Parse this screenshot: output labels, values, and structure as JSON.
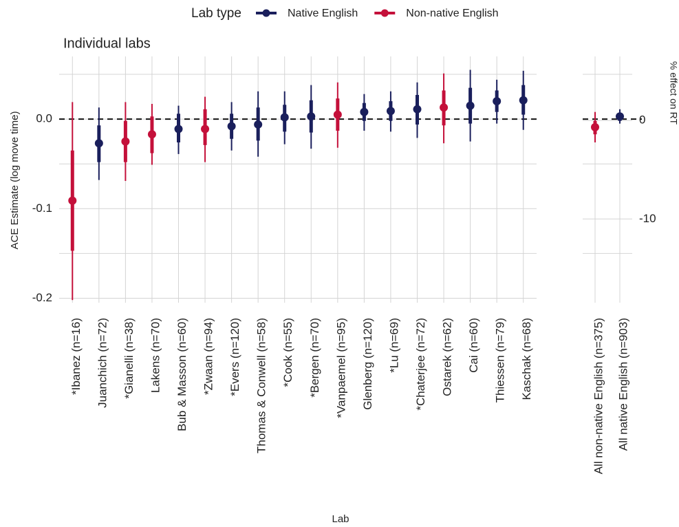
{
  "chart_data": [
    {
      "type": "pointrange",
      "title": "Individual labs",
      "x_label": "Lab",
      "y_label": "ACE Estimate (log move time)",
      "legend_title": "Lab type",
      "legend_position": "top",
      "categories": [
        "*Ibanez (n=16)",
        "Juanchich (n=72)",
        "*Gianelli (n=38)",
        "Lakens (n=70)",
        "Bub & Masson (n=60)",
        "*Zwaan (n=94)",
        "*Evers (n=120)",
        "Thomas & Conwell (n=58)",
        "*Cook (n=55)",
        "*Bergen (n=70)",
        "*Vanpaemel (n=95)",
        "Glenberg (n=120)",
        "*Lu (n=69)",
        "*Chaterjee (n=72)",
        "Ostarek (n=62)",
        "Cai (n=60)",
        "Thiessen (n=79)",
        "Kaschak (n=68)"
      ],
      "series": [
        {
          "name": "Native English",
          "color": "#1a1f5c",
          "values": [
            null,
            -0.027,
            null,
            null,
            -0.011,
            null,
            -0.008,
            -0.006,
            0.002,
            0.003,
            null,
            0.008,
            0.009,
            0.011,
            null,
            0.015,
            0.02,
            0.021
          ],
          "inner_low": [
            null,
            -0.048,
            null,
            null,
            -0.026,
            null,
            -0.022,
            -0.024,
            -0.014,
            -0.015,
            null,
            -0.002,
            -0.002,
            -0.006,
            null,
            -0.005,
            0.008,
            0.005
          ],
          "inner_high": [
            null,
            -0.007,
            null,
            null,
            0.006,
            null,
            0.006,
            0.013,
            0.016,
            0.021,
            null,
            0.018,
            0.02,
            0.027,
            null,
            0.035,
            0.032,
            0.038
          ],
          "outer_low": [
            null,
            -0.068,
            null,
            null,
            -0.039,
            null,
            -0.035,
            -0.042,
            -0.028,
            -0.033,
            null,
            -0.013,
            -0.014,
            -0.021,
            null,
            -0.025,
            -0.005,
            -0.012
          ],
          "outer_high": [
            null,
            0.013,
            null,
            null,
            0.015,
            null,
            0.019,
            0.031,
            0.031,
            0.038,
            null,
            0.028,
            0.031,
            0.041,
            null,
            0.055,
            0.044,
            0.054
          ]
        },
        {
          "name": "Non-native English",
          "color": "#c4103a",
          "values": [
            -0.091,
            null,
            -0.025,
            -0.017,
            null,
            -0.011,
            null,
            null,
            null,
            null,
            0.005,
            null,
            null,
            null,
            0.013,
            null,
            null,
            null
          ],
          "inner_low": [
            -0.147,
            null,
            -0.048,
            -0.038,
            null,
            -0.029,
            null,
            null,
            null,
            null,
            -0.013,
            null,
            null,
            null,
            -0.007,
            null,
            null,
            null
          ],
          "inner_high": [
            -0.035,
            null,
            -0.002,
            0.003,
            null,
            0.011,
            null,
            null,
            null,
            null,
            0.023,
            null,
            null,
            null,
            0.032,
            null,
            null,
            null
          ],
          "outer_low": [
            -0.202,
            null,
            -0.069,
            -0.051,
            null,
            -0.048,
            null,
            null,
            null,
            null,
            -0.032,
            null,
            null,
            null,
            -0.027,
            null,
            null,
            null
          ],
          "outer_high": [
            0.019,
            null,
            0.019,
            0.017,
            null,
            0.025,
            null,
            null,
            null,
            null,
            0.041,
            null,
            null,
            null,
            0.051,
            null,
            null,
            null
          ]
        }
      ],
      "ylim": [
        -0.205,
        0.07
      ],
      "yticks": [
        -0.2,
        -0.1,
        {
          "value": 0,
          "label": "0.0"
        }
      ],
      "minor_yticks": [
        -0.15,
        -0.05,
        0.05
      ],
      "hline": 0,
      "grid": true
    },
    {
      "type": "pointrange",
      "y2_label": "% effect on RT",
      "categories": [
        "All non-native English (n=375)",
        "All native English (n=903)"
      ],
      "series": [
        {
          "name": "Non-native English",
          "color": "#c4103a",
          "values": [
            -0.009,
            null
          ],
          "inner_low": [
            -0.017,
            null
          ],
          "inner_high": [
            -0.002,
            null
          ],
          "outer_low": [
            -0.026,
            null
          ],
          "outer_high": [
            0.008,
            null
          ]
        },
        {
          "name": "Native English",
          "color": "#1a1f5c",
          "values": [
            null,
            0.003
          ],
          "inner_low": [
            null,
            -0.002
          ],
          "inner_high": [
            null,
            0.006
          ],
          "outer_low": [
            null,
            -0.005
          ],
          "outer_high": [
            null,
            0.011
          ]
        }
      ],
      "ylim": [
        -0.205,
        0.07
      ],
      "minor_yticks": [
        -0.15,
        -0.05,
        0.05
      ],
      "y2lim": [
        -18.5,
        6.5
      ],
      "y2ticks": [
        -10,
        0
      ],
      "hline": 0,
      "grid": true
    }
  ]
}
